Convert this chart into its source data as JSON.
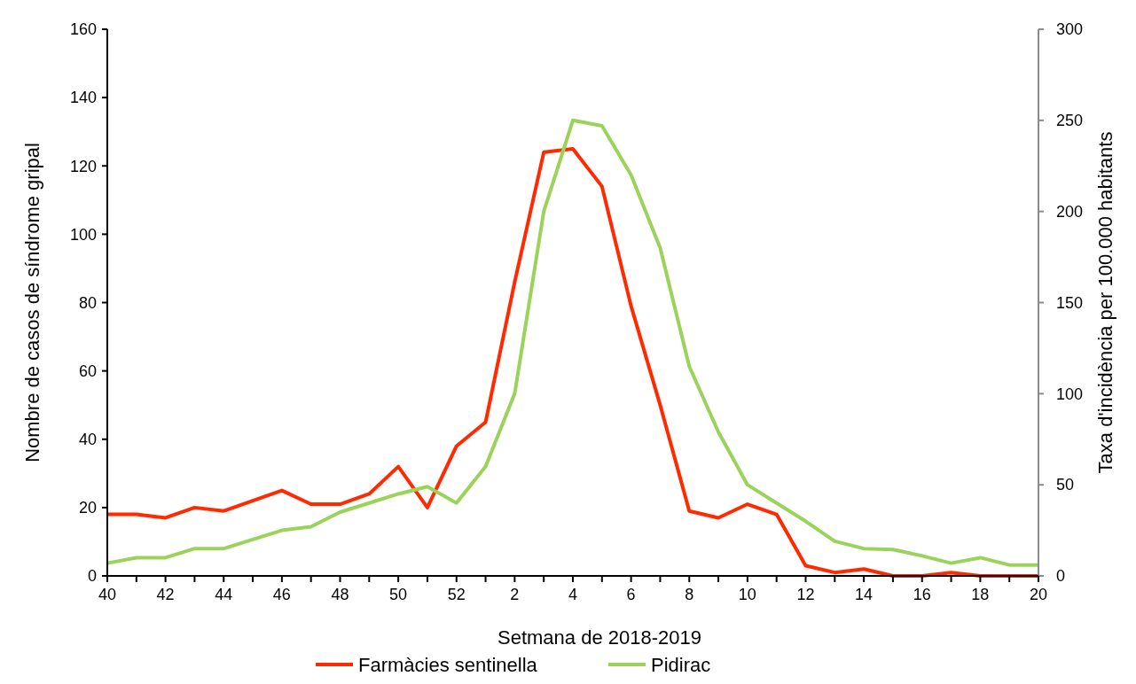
{
  "chart_data": {
    "type": "line",
    "xlabel": "Setmana de 2018-2019",
    "ylabel": "Nombre de casos de síndrome gripal",
    "y2label": "Taxa d'incidència per 100.000 habitants",
    "categories": [
      "40",
      null,
      "42",
      null,
      "44",
      null,
      "46",
      null,
      "48",
      null,
      "50",
      null,
      "52",
      null,
      "2",
      null,
      "4",
      null,
      "6",
      null,
      "8",
      null,
      "10",
      null,
      "12",
      null,
      "14",
      null,
      "16",
      null,
      "18",
      null,
      "20"
    ],
    "series": [
      {
        "name": "Farmàcies sentinella",
        "color": "#ff2a00",
        "values": [
          18,
          18,
          17,
          20,
          19,
          22,
          25,
          21,
          21,
          24,
          32,
          20,
          38,
          45,
          86,
          124,
          125,
          114,
          79,
          50,
          19,
          17,
          21,
          18,
          3,
          1,
          2,
          0,
          0,
          1,
          0,
          0,
          0
        ]
      },
      {
        "name": "Pidirac",
        "color": "#9bd35a",
        "axis": "y2",
        "values": [
          7,
          10,
          10,
          15,
          15,
          20,
          25,
          27,
          35,
          40,
          45,
          49,
          40,
          60,
          100,
          200,
          250,
          247,
          220,
          180,
          115,
          79,
          50,
          40,
          30,
          19,
          15,
          14.5,
          11,
          7,
          10,
          6,
          6
        ]
      }
    ],
    "ylim": [
      0,
      160
    ],
    "yticks": [
      0,
      20,
      40,
      60,
      80,
      100,
      120,
      140,
      160
    ],
    "y2lim": [
      0,
      300
    ],
    "y2ticks": [
      0,
      50,
      100,
      150,
      200,
      250,
      300
    ],
    "grid": false,
    "legend": "bottom",
    "marker": "none",
    "line_style": "solid"
  }
}
